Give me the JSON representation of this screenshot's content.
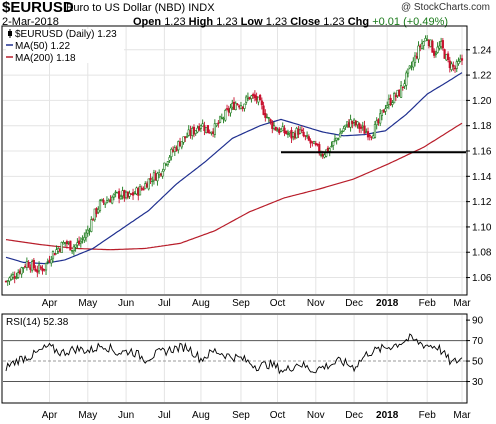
{
  "header": {
    "symbol": "$EURUSD",
    "description": "Euro to US Dollar (NBD)  INDX",
    "copyright": "@ StockCharts.com",
    "date": "2-Mar-2018",
    "ohlc": {
      "open_label": "Open",
      "open": "1.23",
      "high_label": "High",
      "high": "1.23",
      "low_label": "Low",
      "low": "1.23",
      "close_label": "Close",
      "close": "1.23",
      "chg_label": "Chg",
      "chg": "+0.01 (+0.49%)"
    }
  },
  "colors": {
    "up": "#1a7a1a",
    "down": "#c8102e",
    "ma50": "#1f2f8f",
    "ma200": "#b81d2a",
    "rsi_band": "#555555",
    "support": "#000000"
  },
  "chart_data": [
    {
      "type": "candlestick",
      "title": "$EURUSD (Daily) 1.23",
      "legend": [
        {
          "label": "$EURUSD (Daily) 1.23",
          "icon": "candlestick-icon"
        },
        {
          "label": "MA(50) 1.22",
          "color": "#1f2f8f"
        },
        {
          "label": "MA(200) 1.18",
          "color": "#b81d2a"
        }
      ],
      "y_ticks": [
        "1.06",
        "1.08",
        "1.10",
        "1.12",
        "1.14",
        "1.16",
        "1.18",
        "1.20",
        "1.22",
        "1.24"
      ],
      "ylim": [
        1.047,
        1.258
      ],
      "x_ticks": [
        {
          "label": "Apr",
          "idx": 25
        },
        {
          "label": "May",
          "idx": 47
        },
        {
          "label": "Jun",
          "idx": 69
        },
        {
          "label": "Jul",
          "idx": 91
        },
        {
          "label": "Aug",
          "idx": 112
        },
        {
          "label": "Sep",
          "idx": 135
        },
        {
          "label": "Oct",
          "idx": 156
        },
        {
          "label": "Nov",
          "idx": 178
        },
        {
          "label": "Dec",
          "idx": 200
        },
        {
          "label": "2018",
          "idx": 219,
          "bold": true
        },
        {
          "label": "Feb",
          "idx": 242
        },
        {
          "label": "Mar",
          "idx": 262
        }
      ],
      "price_anchors": [
        [
          0,
          1.057
        ],
        [
          6,
          1.063
        ],
        [
          12,
          1.072
        ],
        [
          18,
          1.066
        ],
        [
          22,
          1.068
        ],
        [
          26,
          1.078
        ],
        [
          30,
          1.083
        ],
        [
          34,
          1.088
        ],
        [
          38,
          1.084
        ],
        [
          42,
          1.087
        ],
        [
          46,
          1.094
        ],
        [
          50,
          1.108
        ],
        [
          54,
          1.118
        ],
        [
          58,
          1.121
        ],
        [
          62,
          1.124
        ],
        [
          66,
          1.126
        ],
        [
          70,
          1.123
        ],
        [
          74,
          1.127
        ],
        [
          78,
          1.13
        ],
        [
          82,
          1.137
        ],
        [
          85,
          1.14
        ],
        [
          88,
          1.142
        ],
        [
          92,
          1.153
        ],
        [
          96,
          1.16
        ],
        [
          100,
          1.167
        ],
        [
          104,
          1.172
        ],
        [
          108,
          1.176
        ],
        [
          112,
          1.182
        ],
        [
          116,
          1.176
        ],
        [
          120,
          1.178
        ],
        [
          124,
          1.185
        ],
        [
          128,
          1.192
        ],
        [
          132,
          1.198
        ],
        [
          136,
          1.197
        ],
        [
          140,
          1.203
        ],
        [
          144,
          1.201
        ],
        [
          148,
          1.192
        ],
        [
          152,
          1.182
        ],
        [
          156,
          1.177
        ],
        [
          160,
          1.175
        ],
        [
          164,
          1.172
        ],
        [
          168,
          1.176
        ],
        [
          172,
          1.17
        ],
        [
          176,
          1.165
        ],
        [
          180,
          1.16
        ],
        [
          182,
          1.158
        ],
        [
          186,
          1.162
        ],
        [
          190,
          1.17
        ],
        [
          194,
          1.178
        ],
        [
          198,
          1.183
        ],
        [
          202,
          1.18
        ],
        [
          206,
          1.176
        ],
        [
          210,
          1.174
        ],
        [
          214,
          1.182
        ],
        [
          218,
          1.196
        ],
        [
          222,
          1.201
        ],
        [
          226,
          1.206
        ],
        [
          230,
          1.218
        ],
        [
          234,
          1.23
        ],
        [
          238,
          1.243
        ],
        [
          242,
          1.25
        ],
        [
          246,
          1.238
        ],
        [
          250,
          1.243
        ],
        [
          254,
          1.23
        ],
        [
          258,
          1.225
        ],
        [
          262,
          1.232
        ]
      ],
      "ma50_anchors": [
        [
          0,
          1.076
        ],
        [
          10,
          1.072
        ],
        [
          22,
          1.071
        ],
        [
          34,
          1.074
        ],
        [
          50,
          1.083
        ],
        [
          66,
          1.098
        ],
        [
          82,
          1.113
        ],
        [
          98,
          1.134
        ],
        [
          114,
          1.151
        ],
        [
          130,
          1.17
        ],
        [
          146,
          1.18
        ],
        [
          158,
          1.185
        ],
        [
          170,
          1.18
        ],
        [
          182,
          1.175
        ],
        [
          194,
          1.172
        ],
        [
          206,
          1.173
        ],
        [
          218,
          1.176
        ],
        [
          230,
          1.189
        ],
        [
          242,
          1.205
        ],
        [
          254,
          1.215
        ],
        [
          262,
          1.222
        ]
      ],
      "ma200_anchors": [
        [
          0,
          1.09
        ],
        [
          20,
          1.086
        ],
        [
          40,
          1.083
        ],
        [
          60,
          1.082
        ],
        [
          80,
          1.083
        ],
        [
          100,
          1.087
        ],
        [
          120,
          1.097
        ],
        [
          140,
          1.112
        ],
        [
          160,
          1.123
        ],
        [
          180,
          1.13
        ],
        [
          200,
          1.138
        ],
        [
          220,
          1.15
        ],
        [
          240,
          1.163
        ],
        [
          262,
          1.182
        ]
      ],
      "support_level": 1.159,
      "support_start_idx": 158,
      "series_labels": {
        "ma50": "MA(50) 1.22",
        "ma200": "MA(200) 1.18"
      }
    },
    {
      "type": "line",
      "title": "RSI(14) 52.38",
      "y_ticks": [
        "30",
        "50",
        "70",
        "90"
      ],
      "ylim": [
        10,
        95
      ],
      "bands": [
        30,
        70
      ],
      "mid": 50,
      "values_anchors": [
        [
          0,
          44
        ],
        [
          8,
          52
        ],
        [
          16,
          56
        ],
        [
          24,
          64
        ],
        [
          32,
          58
        ],
        [
          40,
          62
        ],
        [
          48,
          60
        ],
        [
          56,
          66
        ],
        [
          64,
          58
        ],
        [
          72,
          60
        ],
        [
          80,
          52
        ],
        [
          88,
          58
        ],
        [
          96,
          62
        ],
        [
          104,
          64
        ],
        [
          112,
          52
        ],
        [
          120,
          60
        ],
        [
          128,
          55
        ],
        [
          136,
          52
        ],
        [
          144,
          45
        ],
        [
          152,
          47
        ],
        [
          160,
          40
        ],
        [
          168,
          48
        ],
        [
          176,
          41
        ],
        [
          184,
          45
        ],
        [
          192,
          50
        ],
        [
          200,
          44
        ],
        [
          208,
          58
        ],
        [
          216,
          62
        ],
        [
          224,
          66
        ],
        [
          232,
          72
        ],
        [
          240,
          66
        ],
        [
          248,
          64
        ],
        [
          256,
          48
        ],
        [
          262,
          52.38
        ]
      ]
    }
  ]
}
